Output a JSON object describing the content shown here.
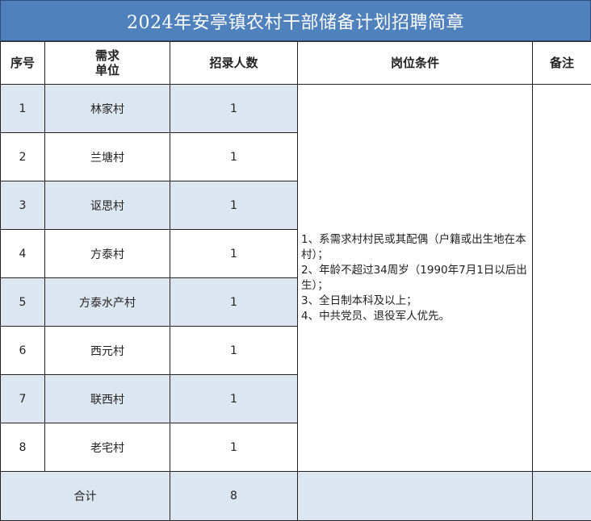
{
  "title": "2024年安亭镇农村干部储备计划招聘简章",
  "headers": {
    "no": "序号",
    "unit": "需求\n单位",
    "count": "招录人数",
    "conditions": "岗位条件",
    "remarks": "备注"
  },
  "rows": [
    {
      "no": "1",
      "unit": "林家村",
      "count": "1"
    },
    {
      "no": "2",
      "unit": "兰塘村",
      "count": "1"
    },
    {
      "no": "3",
      "unit": "讴思村",
      "count": "1"
    },
    {
      "no": "4",
      "unit": "方泰村",
      "count": "1"
    },
    {
      "no": "5",
      "unit": "方泰水产村",
      "count": "1"
    },
    {
      "no": "6",
      "unit": "西元村",
      "count": "1"
    },
    {
      "no": "7",
      "unit": "联西村",
      "count": "1"
    },
    {
      "no": "8",
      "unit": "老宅村",
      "count": "1"
    }
  ],
  "conditions": [
    "1、系需求村村民或其配偶（户籍或出生地在本村）；",
    "2、年龄不超过34周岁（1990年7月1日以后出生）；",
    "3、全日制本科及以上；",
    "4、中共党员、退役军人优先。"
  ],
  "total": {
    "label": "合计",
    "count": "8"
  },
  "colors": {
    "title_bg": "#4f81bd",
    "row_shade": "#dce6f1"
  }
}
